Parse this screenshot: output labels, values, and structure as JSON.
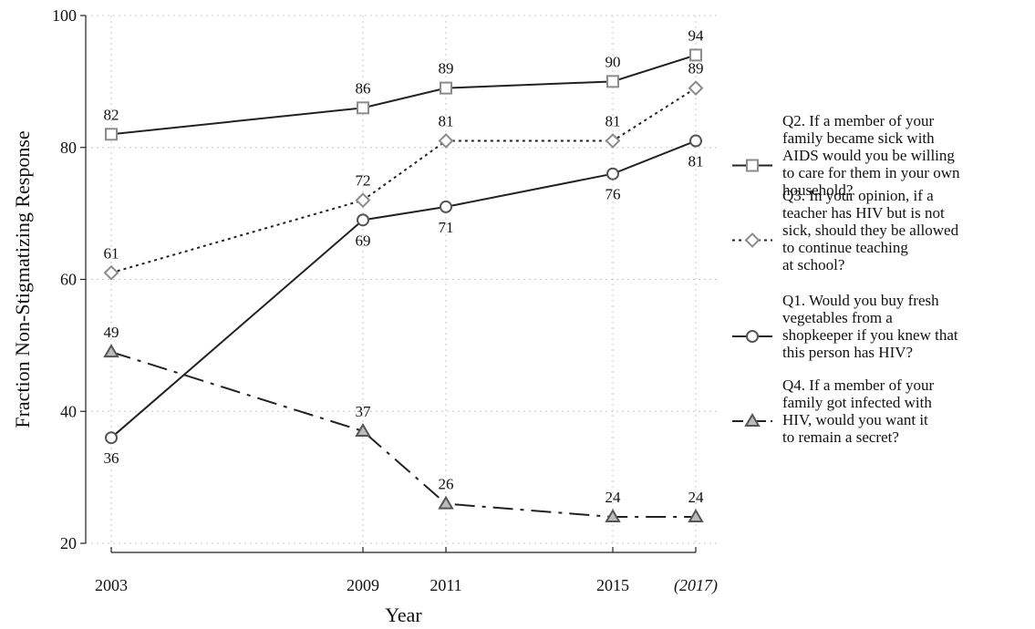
{
  "chart_data": {
    "type": "line",
    "title": "",
    "xlabel": "Year",
    "ylabel": "Fraction Non-Stigmatizing Response",
    "x": [
      2003,
      2009,
      2011,
      2015,
      2017
    ],
    "x_tick_labels": [
      "2003",
      "2009",
      "2011",
      "2015",
      "(2017)"
    ],
    "ylim": [
      20,
      100
    ],
    "yticks": [
      20,
      40,
      60,
      80,
      100
    ],
    "grid": true,
    "legend_position": "right",
    "series": [
      {
        "name": "Q2. If a member of your family became sick with AIDS would you be willing to care for them in your own household?",
        "legend_lines": [
          "Q2. If a member of your",
          "family became sick with",
          "AIDS would you be willing",
          "to care for them in your own",
          "household?"
        ],
        "values": [
          82,
          86,
          89,
          90,
          94
        ],
        "labels": [
          "82",
          "86",
          "89",
          "90",
          "94"
        ],
        "marker": "square",
        "line_style": "solid",
        "line_color": "#222222",
        "marker_color": "#8c8c8c"
      },
      {
        "name": "Q3. In your opinion, if a teacher has HIV but is not sick, should they be allowed to continue teaching at school?",
        "legend_lines": [
          "Q3. In your opinion, if a",
          "teacher has HIV but is not",
          "sick, should they be allowed",
          "to continue teaching",
          "at school?"
        ],
        "values": [
          61,
          72,
          81,
          81,
          89
        ],
        "labels": [
          "61",
          "72",
          "81",
          "81",
          "89"
        ],
        "marker": "diamond",
        "line_style": "dotted",
        "line_color": "#222222",
        "marker_color": "#8c8c8c"
      },
      {
        "name": "Q1. Would you buy fresh vegetables from a shopkeeper if you knew that this person has HIV?",
        "legend_lines": [
          "Q1. Would you buy fresh",
          "vegetables from a",
          "shopkeeper if you knew that",
          "this person has HIV?"
        ],
        "values": [
          36,
          69,
          71,
          76,
          81
        ],
        "labels": [
          "36",
          "69",
          "71",
          "76",
          "81"
        ],
        "marker": "circle",
        "line_style": "solid",
        "line_color": "#222222",
        "marker_color": "#555555"
      },
      {
        "name": "Q4. If a member of your family got infected with HIV, would you want it to remain a secret?",
        "legend_lines": [
          "Q4. If a member of your",
          "family got infected with",
          "HIV, would you want it",
          "to remain a secret?"
        ],
        "values": [
          49,
          37,
          26,
          24,
          24
        ],
        "labels": [
          "49",
          "37",
          "26",
          "24",
          "24"
        ],
        "marker": "triangle",
        "line_style": "dashdot",
        "line_color": "#222222",
        "marker_color": "#555555"
      }
    ]
  }
}
